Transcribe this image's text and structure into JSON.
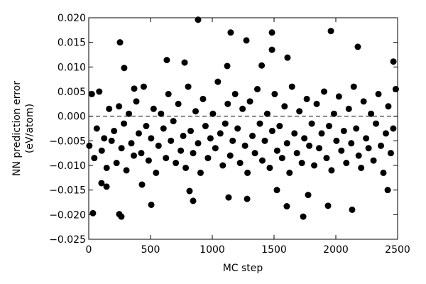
{
  "chart_data": {
    "type": "scatter",
    "xlabel": "MC step",
    "ylabel": [
      "NN prediction error",
      "(eV/atom)"
    ],
    "xlim": [
      0,
      2500
    ],
    "xticks": [
      0,
      500,
      1000,
      1500,
      2000,
      2500
    ],
    "ylim": [
      -0.025,
      0.02
    ],
    "yticks": [
      {
        "value": -0.025,
        "label": "−0.025"
      },
      {
        "value": -0.02,
        "label": "−0.020"
      },
      {
        "value": -0.015,
        "label": "−0.015"
      },
      {
        "value": -0.01,
        "label": "−0.010"
      },
      {
        "value": -0.005,
        "label": "−0.005"
      },
      {
        "value": 0,
        "label": "0.000"
      },
      {
        "value": 0.005,
        "label": "0.005"
      },
      {
        "value": 0.01,
        "label": "0.010"
      },
      {
        "value": 0.015,
        "label": "0.015"
      },
      {
        "value": 0.02,
        "label": "0.020"
      }
    ],
    "reference_line": 0,
    "grid": false,
    "color": "#000000",
    "x": [
      5,
      25,
      45,
      65,
      85,
      105,
      125,
      145,
      165,
      185,
      205,
      225,
      245,
      265,
      285,
      305,
      325,
      345,
      365,
      385,
      405,
      425,
      445,
      465,
      485,
      505,
      525,
      545,
      565,
      585,
      605,
      625,
      645,
      665,
      685,
      705,
      725,
      745,
      765,
      785,
      805,
      825,
      845,
      865,
      885,
      905,
      925,
      945,
      965,
      985,
      1005,
      1025,
      1045,
      1065,
      1085,
      1105,
      1125,
      1145,
      1165,
      1185,
      1205,
      1225,
      1245,
      1265,
      1285,
      1305,
      1325,
      1345,
      1365,
      1385,
      1405,
      1425,
      1445,
      1465,
      1485,
      1505,
      1525,
      1545,
      1565,
      1585,
      1605,
      1625,
      1645,
      1665,
      1685,
      1705,
      1725,
      1745,
      1765,
      1785,
      1805,
      1825,
      1845,
      1865,
      1885,
      1905,
      1925,
      1945,
      1965,
      1985,
      2005,
      2025,
      2045,
      2065,
      2085,
      2105,
      2125,
      2145,
      2165,
      2185,
      2205,
      2225,
      2245,
      2265,
      2285,
      2305,
      2325,
      2345,
      2365,
      2385,
      2405,
      2425,
      2445,
      2465,
      2485,
      34,
      247,
      264,
      253,
      287,
      885,
      1149,
      1276,
      1483,
      1483,
      1609,
      1960,
      2178,
      2466,
      506,
      845,
      1603,
      1736,
      1937,
      2132,
      632,
      776,
      1121,
      1400,
      368,
      431,
      103,
      144,
      1132,
      1282,
      1523,
      1776,
      2420,
      816
    ],
    "y": [
      -0.006,
      0.0045,
      -0.0085,
      -0.0025,
      0.005,
      -0.007,
      -0.0045,
      -0.0105,
      0.0015,
      -0.005,
      -0.003,
      -0.0095,
      0.002,
      -0.0065,
      -0.0015,
      -0.011,
      0.0005,
      -0.0055,
      -0.008,
      0.003,
      -0.0035,
      -0.0075,
      0.006,
      -0.002,
      -0.009,
      -0.0045,
      0.0015,
      -0.0115,
      -0.006,
      0.0005,
      -0.0025,
      -0.0085,
      0.0045,
      -0.005,
      -0.001,
      -0.0095,
      0.0025,
      -0.007,
      -0.004,
      -0.0105,
      0.006,
      -0.003,
      -0.0075,
      0.001,
      -0.0055,
      -0.0115,
      0.0035,
      -0.002,
      -0.0085,
      -0.0045,
      0.0005,
      -0.0065,
      0.007,
      -0.0035,
      -0.01,
      -0.0015,
      0.0025,
      -0.008,
      -0.005,
      0.0045,
      -0.0025,
      -0.0095,
      0.0015,
      -0.006,
      -0.0115,
      0.003,
      -0.004,
      -0.0075,
      0.0055,
      -0.0015,
      -0.009,
      -0.005,
      0.0005,
      -0.0105,
      -0.003,
      0.0045,
      -0.007,
      -0.002,
      -0.0085,
      0.002,
      -0.0055,
      -0.0115,
      0.006,
      -0.0035,
      -0.0075,
      0.001,
      -0.0095,
      -0.0045,
      0.0035,
      -0.006,
      -0.0015,
      -0.01,
      0.0025,
      -0.0065,
      -0.0035,
      0.005,
      -0.0085,
      -0.002,
      -0.011,
      0.0005,
      -0.005,
      0.004,
      -0.007,
      -0.003,
      -0.0095,
      0.0015,
      -0.0055,
      0.006,
      -0.0025,
      -0.008,
      -0.0105,
      0.003,
      -0.0045,
      -0.0065,
      0.0005,
      -0.009,
      -0.0015,
      0.0045,
      -0.006,
      -0.0115,
      -0.0035,
      0.002,
      -0.0075,
      -0.0025,
      0.0055,
      -0.0197,
      -0.0199,
      -0.0204,
      0.015,
      0.0098,
      0.0196,
      0.017,
      0.0154,
      0.017,
      0.0135,
      0.0119,
      0.0173,
      0.0141,
      0.0111,
      -0.018,
      -0.0172,
      -0.0183,
      -0.0204,
      -0.0182,
      -0.019,
      0.0114,
      0.0109,
      0.0102,
      0.0103,
      0.0056,
      -0.0139,
      -0.0136,
      -0.0143,
      -0.0165,
      -0.0168,
      -0.015,
      -0.016,
      -0.015,
      -0.0152
    ]
  }
}
